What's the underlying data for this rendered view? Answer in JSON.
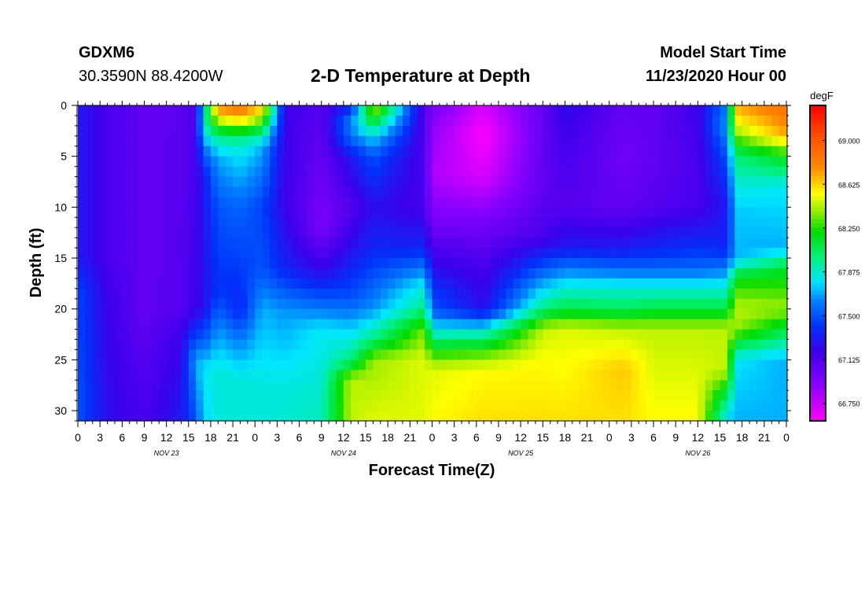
{
  "header": {
    "station": "GDXM6",
    "coords": "30.3590N 88.4200W",
    "model_start_label": "Model Start Time",
    "model_start_value": "11/23/2020 Hour 00"
  },
  "chart_data": {
    "type": "heatmap",
    "title": "2-D Temperature at Depth",
    "xlabel": "Forecast Time(Z)",
    "ylabel": "Depth (ft)",
    "x_hours": [
      0,
      96
    ],
    "xlim": [
      0,
      96
    ],
    "ylim": [
      0,
      31
    ],
    "y_reversed": true,
    "x_tick_labels": [
      "0",
      "3",
      "6",
      "9",
      "12",
      "15",
      "18",
      "21",
      "0",
      "3",
      "6",
      "9",
      "12",
      "15",
      "18",
      "21",
      "0",
      "3",
      "6",
      "9",
      "12",
      "15",
      "18",
      "21",
      "0",
      "3",
      "6",
      "9",
      "12",
      "15",
      "18",
      "21",
      "0"
    ],
    "x_day_labels": [
      {
        "label": "NOV 23",
        "hour": 12
      },
      {
        "label": "NOV 24",
        "hour": 36
      },
      {
        "label": "NOV 25",
        "hour": 60
      },
      {
        "label": "NOV 26",
        "hour": 84
      }
    ],
    "y_ticks": [
      0,
      5,
      10,
      15,
      20,
      25,
      30
    ],
    "colorbar": {
      "unit": "degF",
      "min": 66.6,
      "max": 69.3,
      "tick_values": [
        69.0,
        68.625,
        68.25,
        67.875,
        67.5,
        67.125,
        66.75
      ],
      "tick_labels": [
        "69.000",
        "68.625",
        "68.250",
        "67.875",
        "67.500",
        "67.125",
        "66.750"
      ]
    },
    "columns": [
      {
        "hour": 0,
        "points": [
          [
            0,
            67.3
          ],
          [
            5,
            67.3
          ],
          [
            15,
            67.3
          ],
          [
            18,
            67.45
          ],
          [
            31,
            67.5
          ]
        ]
      },
      {
        "hour": 4,
        "points": [
          [
            0,
            67.15
          ],
          [
            15,
            67.15
          ],
          [
            20,
            67.2
          ],
          [
            31,
            67.25
          ]
        ]
      },
      {
        "hour": 9,
        "points": [
          [
            0,
            67.05
          ],
          [
            20,
            67.05
          ],
          [
            31,
            67.15
          ]
        ]
      },
      {
        "hour": 14,
        "points": [
          [
            0,
            67.08
          ],
          [
            20,
            67.1
          ],
          [
            23,
            67.2
          ],
          [
            31,
            67.3
          ]
        ]
      },
      {
        "hour": 16,
        "points": [
          [
            0,
            67.15
          ],
          [
            20,
            67.2
          ],
          [
            22,
            67.4
          ],
          [
            25,
            67.7
          ],
          [
            31,
            67.5
          ]
        ]
      },
      {
        "hour": 17,
        "points": [
          [
            0,
            67.8
          ],
          [
            2,
            67.9
          ],
          [
            4,
            67.6
          ],
          [
            7,
            67.3
          ],
          [
            20,
            67.25
          ],
          [
            23,
            67.5
          ],
          [
            26,
            67.8
          ],
          [
            31,
            67.75
          ]
        ]
      },
      {
        "hour": 19,
        "points": [
          [
            0,
            68.8
          ],
          [
            1,
            68.6
          ],
          [
            3,
            68.0
          ],
          [
            5,
            67.7
          ],
          [
            10,
            67.5
          ],
          [
            18,
            67.4
          ],
          [
            22,
            67.65
          ],
          [
            26,
            67.85
          ],
          [
            31,
            67.85
          ]
        ]
      },
      {
        "hour": 22,
        "points": [
          [
            0,
            68.9
          ],
          [
            2,
            68.5
          ],
          [
            3,
            68.0
          ],
          [
            5,
            67.8
          ],
          [
            10,
            67.55
          ],
          [
            20,
            67.35
          ],
          [
            23,
            67.6
          ],
          [
            27,
            67.85
          ],
          [
            31,
            67.85
          ]
        ]
      },
      {
        "hour": 25,
        "points": [
          [
            0,
            68.7
          ],
          [
            2,
            68.2
          ],
          [
            4,
            67.7
          ],
          [
            10,
            67.45
          ],
          [
            16,
            67.5
          ],
          [
            20,
            67.7
          ],
          [
            28,
            67.85
          ],
          [
            31,
            67.85
          ]
        ]
      },
      {
        "hour": 28,
        "points": [
          [
            0,
            67.2
          ],
          [
            10,
            67.2
          ],
          [
            16,
            67.35
          ],
          [
            20,
            67.65
          ],
          [
            28,
            67.85
          ],
          [
            31,
            67.85
          ]
        ]
      },
      {
        "hour": 33,
        "points": [
          [
            0,
            67.1
          ],
          [
            8,
            67.0
          ],
          [
            12,
            66.95
          ],
          [
            16,
            67.2
          ],
          [
            19,
            67.5
          ],
          [
            22,
            67.8
          ],
          [
            31,
            67.9
          ]
        ]
      },
      {
        "hour": 37,
        "points": [
          [
            0,
            67.25
          ],
          [
            1,
            67.6
          ],
          [
            3,
            67.6
          ],
          [
            5,
            67.3
          ],
          [
            10,
            67.1
          ],
          [
            15,
            67.3
          ],
          [
            19,
            67.5
          ],
          [
            22,
            67.75
          ],
          [
            25,
            68.0
          ],
          [
            27,
            68.45
          ],
          [
            31,
            68.45
          ]
        ]
      },
      {
        "hour": 40,
        "points": [
          [
            0,
            68.5
          ],
          [
            1,
            68.3
          ],
          [
            3,
            67.8
          ],
          [
            5,
            67.5
          ],
          [
            10,
            67.25
          ],
          [
            14,
            67.35
          ],
          [
            17,
            67.5
          ],
          [
            20,
            67.65
          ],
          [
            23,
            68.0
          ],
          [
            25,
            68.4
          ],
          [
            31,
            68.5
          ]
        ]
      },
      {
        "hour": 47,
        "points": [
          [
            0,
            67.1
          ],
          [
            10,
            67.15
          ],
          [
            14,
            67.35
          ],
          [
            16,
            67.6
          ],
          [
            18,
            67.85
          ],
          [
            20,
            68.0
          ],
          [
            22,
            68.35
          ],
          [
            25,
            68.5
          ],
          [
            31,
            68.5
          ]
        ]
      },
      {
        "hour": 48,
        "points": [
          [
            0,
            67.0
          ],
          [
            2,
            66.9
          ],
          [
            7,
            66.8
          ],
          [
            12,
            67.0
          ],
          [
            16,
            67.25
          ],
          [
            18,
            67.4
          ],
          [
            20,
            67.5
          ],
          [
            22,
            67.8
          ],
          [
            24,
            68.2
          ],
          [
            26,
            68.5
          ],
          [
            31,
            68.55
          ]
        ]
      },
      {
        "hour": 55,
        "points": [
          [
            0,
            66.7
          ],
          [
            3,
            66.6
          ],
          [
            7,
            66.7
          ],
          [
            12,
            67.0
          ],
          [
            16,
            67.15
          ],
          [
            20,
            67.25
          ],
          [
            22,
            67.8
          ],
          [
            24,
            68.25
          ],
          [
            26,
            68.55
          ],
          [
            31,
            68.6
          ]
        ]
      },
      {
        "hour": 63,
        "points": [
          [
            0,
            67.05
          ],
          [
            8,
            67.05
          ],
          [
            13,
            67.15
          ],
          [
            16,
            67.5
          ],
          [
            18,
            67.75
          ],
          [
            20,
            68.0
          ],
          [
            22,
            68.45
          ],
          [
            25,
            68.55
          ],
          [
            31,
            68.6
          ]
        ]
      },
      {
        "hour": 66,
        "points": [
          [
            0,
            67.25
          ],
          [
            5,
            67.15
          ],
          [
            10,
            67.1
          ],
          [
            14,
            67.3
          ],
          [
            16,
            67.6
          ],
          [
            18,
            67.85
          ],
          [
            20,
            68.1
          ],
          [
            22,
            68.5
          ],
          [
            31,
            68.6
          ]
        ]
      },
      {
        "hour": 74,
        "points": [
          [
            0,
            67.05
          ],
          [
            5,
            67.0
          ],
          [
            10,
            67.05
          ],
          [
            14,
            67.3
          ],
          [
            16,
            67.55
          ],
          [
            18,
            67.85
          ],
          [
            20,
            68.05
          ],
          [
            22,
            68.45
          ],
          [
            26,
            68.65
          ],
          [
            31,
            68.6
          ]
        ]
      },
      {
        "hour": 78,
        "points": [
          [
            0,
            67.05
          ],
          [
            5,
            67.05
          ],
          [
            10,
            67.1
          ],
          [
            14,
            67.35
          ],
          [
            16,
            67.55
          ],
          [
            18,
            67.85
          ],
          [
            20,
            68.1
          ],
          [
            22,
            68.45
          ],
          [
            31,
            68.55
          ]
        ]
      },
      {
        "hour": 84,
        "points": [
          [
            0,
            67.2
          ],
          [
            5,
            67.15
          ],
          [
            10,
            67.15
          ],
          [
            14,
            67.4
          ],
          [
            16,
            67.55
          ],
          [
            18,
            67.85
          ],
          [
            20,
            68.1
          ],
          [
            22,
            68.45
          ],
          [
            31,
            68.55
          ]
        ]
      },
      {
        "hour": 88,
        "points": [
          [
            0,
            67.6
          ],
          [
            2,
            67.7
          ],
          [
            5,
            67.5
          ],
          [
            10,
            67.3
          ],
          [
            14,
            67.35
          ],
          [
            16,
            67.6
          ],
          [
            18,
            67.85
          ],
          [
            20,
            68.1
          ],
          [
            22,
            68.45
          ],
          [
            26,
            68.45
          ],
          [
            29,
            68.0
          ],
          [
            31,
            67.75
          ]
        ]
      },
      {
        "hour": 89,
        "points": [
          [
            0,
            68.7
          ],
          [
            2,
            68.5
          ],
          [
            5,
            68.0
          ],
          [
            10,
            67.75
          ],
          [
            15,
            67.7
          ],
          [
            17,
            68.2
          ],
          [
            20,
            68.45
          ],
          [
            22,
            68.4
          ],
          [
            25,
            67.8
          ],
          [
            31,
            67.7
          ]
        ]
      },
      {
        "hour": 96,
        "points": [
          [
            0,
            68.9
          ],
          [
            3,
            68.7
          ],
          [
            5,
            68.2
          ],
          [
            8,
            67.8
          ],
          [
            14,
            67.7
          ],
          [
            16,
            68.15
          ],
          [
            20,
            68.4
          ],
          [
            22,
            68.1
          ],
          [
            25,
            67.7
          ],
          [
            31,
            67.7
          ]
        ]
      }
    ]
  }
}
